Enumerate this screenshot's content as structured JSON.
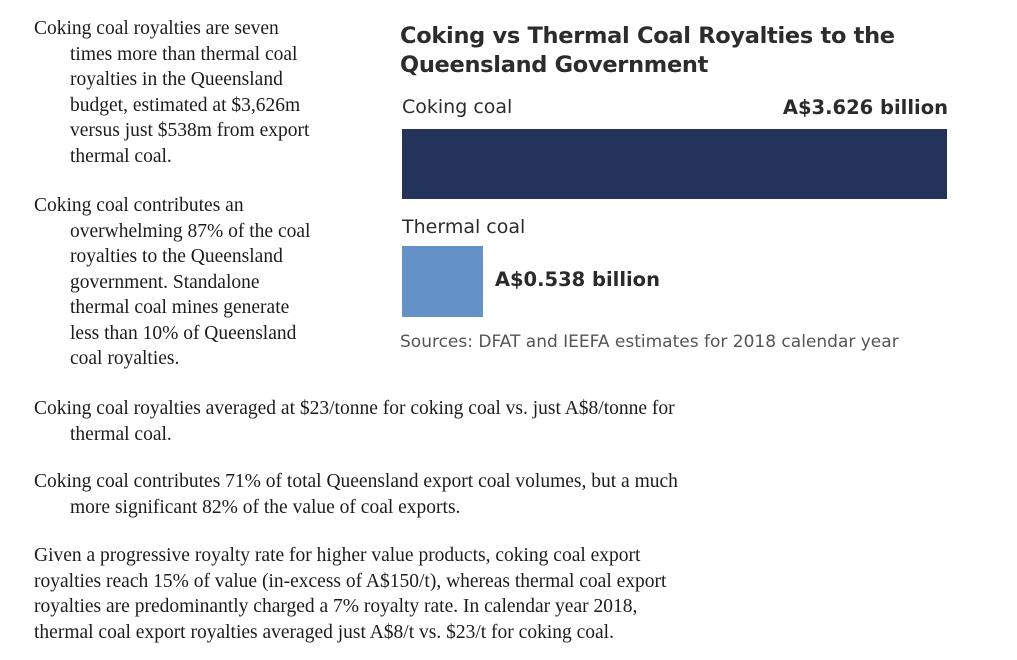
{
  "colors": {
    "coking_bar": "#23335a",
    "thermal_bar": "#6491c6"
  },
  "paragraphs": {
    "p1": [
      "Coking coal royalties are seven",
      "times more than thermal coal",
      "royalties in the Queensland",
      "budget, estimated at $3,626m",
      "versus just $538m from export",
      "thermal coal."
    ],
    "p2": [
      "Coking coal contributes an",
      "overwhelming 87% of the coal",
      "royalties to the Queensland",
      "government. Standalone",
      "thermal coal mines generate",
      "less than 10% of Queensland",
      "coal royalties."
    ],
    "p3": [
      "Coking coal royalties averaged at $23/tonne for coking coal vs. just A$8/tonne for",
      "thermal coal."
    ],
    "p4": [
      "Coking coal contributes 71% of total Queensland export coal volumes, but a much",
      "more significant 82% of the value of coal exports."
    ],
    "p5": [
      "Given a progressive royalty rate for higher value products, coking coal export",
      "royalties reach 15% of value (in-excess of A$150/t), whereas thermal coal export",
      "royalties are predominantly charged a 7% royalty rate. In calendar year 2018,",
      "thermal coal export royalties averaged just A$8/t vs. $23/t for coking coal."
    ]
  },
  "chart_data": {
    "type": "bar",
    "orientation": "horizontal",
    "title_lines": [
      "Coking vs Thermal Coal Royalties to the",
      "Queensland Government"
    ],
    "categories": [
      "Coking coal",
      "Thermal coal"
    ],
    "values": [
      3.626,
      0.538
    ],
    "value_labels": [
      "A$3.626 billion",
      "A$0.538 billion"
    ],
    "unit": "A$ billion",
    "source": "Sources: DFAT and IEEFA estimates for 2018 calendar year",
    "xlim": [
      0,
      3.626
    ],
    "grid": false,
    "legend": "none"
  }
}
